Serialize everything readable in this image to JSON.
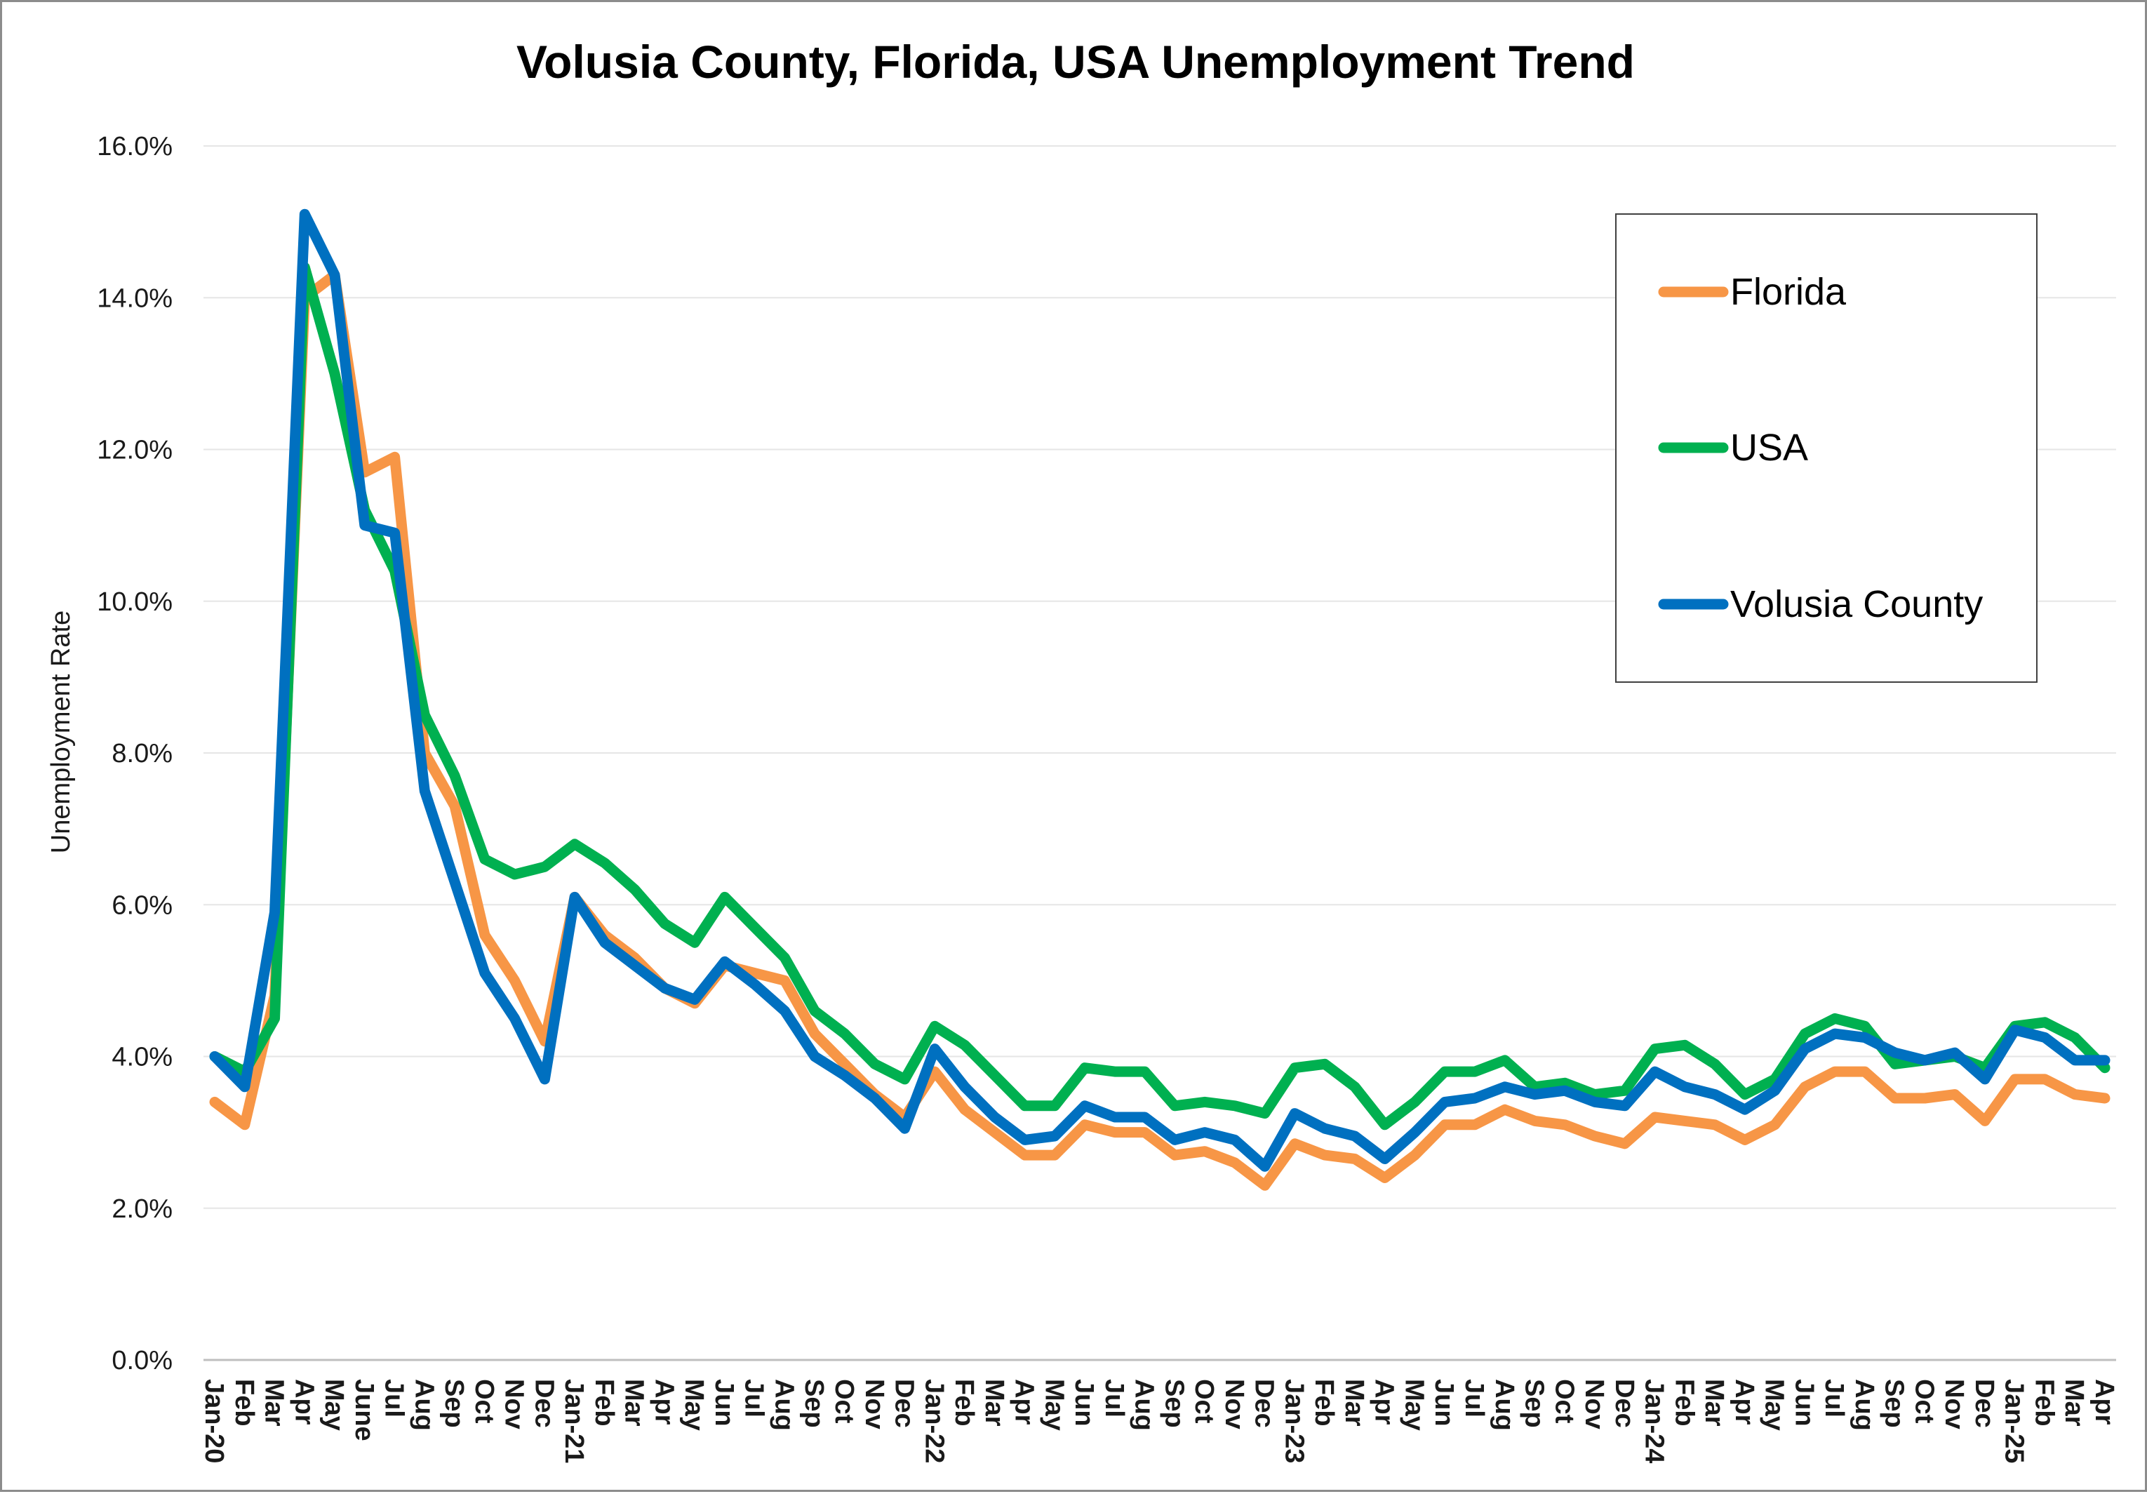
{
  "chart_data": {
    "type": "line",
    "title": "Volusia County, Florida, USA Unemployment Trend",
    "xlabel": "",
    "ylabel": "Unemployment Rate",
    "ylim": [
      0,
      16
    ],
    "yticks": [
      "0.0%",
      "2.0%",
      "4.0%",
      "6.0%",
      "8.0%",
      "10.0%",
      "12.0%",
      "14.0%",
      "16.0%"
    ],
    "grid": "horizontal",
    "legend_position": "top-right",
    "categories": [
      "Jan-20",
      "Feb",
      "Mar",
      "Apr",
      "May",
      "June",
      "Jul",
      "Aug",
      "Sep",
      "Oct",
      "Nov",
      "Dec",
      "Jan-21",
      "Feb",
      "Mar",
      "Apr",
      "May",
      "Jun",
      "Jul",
      "Aug",
      "Sep",
      "Oct",
      "Nov",
      "Dec",
      "Jan-22",
      "Feb",
      "Mar",
      "Apr",
      "May",
      "Jun",
      "Jul",
      "Aug",
      "Sep",
      "Oct",
      "Nov",
      "Dec",
      "Jan-23",
      "Feb",
      "Mar",
      "Apr",
      "May",
      "Jun",
      "Jul",
      "Aug",
      "Sep",
      "Oct",
      "Nov",
      "Dec",
      "Jan-24",
      "Feb",
      "Mar",
      "Apr",
      "May",
      "Jun",
      "Jul",
      "Aug",
      "Sep",
      "Oct",
      "Nov",
      "Dec",
      "Jan-25",
      "Feb",
      "Mar",
      "Apr"
    ],
    "series": [
      {
        "name": "Florida",
        "color": "#F79646",
        "values": [
          3.4,
          3.1,
          4.8,
          14.0,
          14.3,
          11.7,
          11.9,
          8.0,
          7.3,
          5.6,
          5.0,
          4.2,
          6.1,
          5.6,
          5.3,
          4.9,
          4.7,
          5.2,
          5.1,
          5.0,
          4.3,
          3.9,
          3.5,
          3.2,
          3.8,
          3.3,
          3.0,
          2.7,
          2.7,
          3.1,
          3.0,
          3.0,
          2.7,
          2.75,
          2.6,
          2.3,
          2.85,
          2.7,
          2.65,
          2.4,
          2.7,
          3.1,
          3.1,
          3.3,
          3.15,
          3.1,
          2.95,
          2.85,
          3.2,
          3.15,
          3.1,
          2.9,
          3.1,
          3.6,
          3.8,
          3.8,
          3.45,
          3.45,
          3.5,
          3.15,
          3.7,
          3.7,
          3.5,
          3.45
        ]
      },
      {
        "name": "USA",
        "color": "#00B050",
        "values": [
          4.0,
          3.8,
          4.5,
          14.4,
          13.0,
          11.2,
          10.4,
          8.5,
          7.7,
          6.6,
          6.4,
          6.5,
          6.8,
          6.55,
          6.2,
          5.75,
          5.5,
          6.1,
          5.7,
          5.3,
          4.6,
          4.3,
          3.9,
          3.7,
          4.4,
          4.15,
          3.75,
          3.35,
          3.35,
          3.85,
          3.8,
          3.8,
          3.35,
          3.4,
          3.35,
          3.25,
          3.85,
          3.9,
          3.6,
          3.1,
          3.4,
          3.8,
          3.8,
          3.95,
          3.6,
          3.65,
          3.5,
          3.55,
          4.1,
          4.15,
          3.9,
          3.5,
          3.7,
          4.3,
          4.5,
          4.4,
          3.9,
          3.95,
          4.0,
          3.85,
          4.4,
          4.45,
          4.25,
          3.85
        ]
      },
      {
        "name": "Volusia County",
        "color": "#0070C0",
        "values": [
          4.0,
          3.6,
          5.9,
          15.1,
          14.3,
          11.0,
          10.9,
          7.5,
          6.3,
          5.1,
          4.5,
          3.7,
          6.1,
          5.5,
          5.2,
          4.9,
          4.75,
          5.25,
          4.95,
          4.6,
          4.0,
          3.75,
          3.45,
          3.05,
          4.1,
          3.6,
          3.2,
          2.9,
          2.95,
          3.35,
          3.2,
          3.2,
          2.9,
          3.0,
          2.9,
          2.55,
          3.25,
          3.05,
          2.95,
          2.65,
          3.0,
          3.4,
          3.45,
          3.6,
          3.5,
          3.55,
          3.4,
          3.35,
          3.8,
          3.6,
          3.5,
          3.3,
          3.55,
          4.1,
          4.3,
          4.25,
          4.05,
          3.95,
          4.05,
          3.7,
          4.35,
          4.25,
          3.95,
          3.95
        ]
      }
    ]
  }
}
